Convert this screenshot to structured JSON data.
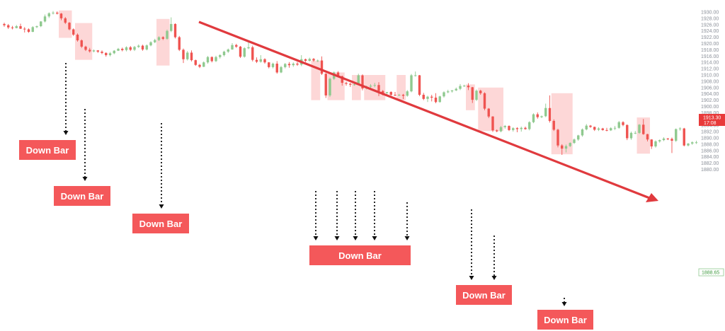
{
  "chart_data": {
    "type": "candlestick",
    "title": "",
    "xlabel": "",
    "ylabel": "",
    "ylim": [
      1880,
      1931
    ],
    "y_ticks": [
      "1930.00",
      "1928.00",
      "1926.00",
      "1924.00",
      "1922.00",
      "1920.00",
      "1918.00",
      "1916.00",
      "1914.00",
      "1912.00",
      "1910.00",
      "1908.00",
      "1906.00",
      "1904.00",
      "1902.00",
      "1900.00",
      "1898.00",
      "1896.00",
      "1894.00",
      "1892.00",
      "1890.00",
      "1888.00",
      "1886.00",
      "1884.00",
      "1882.00",
      "1880.00"
    ],
    "grid": false,
    "current_price_tag": {
      "price": "1913.30",
      "time": "17:08",
      "value": 1913.3
    },
    "last_price_tag": {
      "price": "1888.65",
      "value": 1888.65
    },
    "colors": {
      "up": "#8fc98f",
      "down": "#ef5350",
      "highlight": "#fcc9c9",
      "label_bg": "#f4585a",
      "trend_arrow": "#e03a3e",
      "connector": "#111111"
    },
    "annotations": {
      "trend_arrow": "downtrend",
      "down_bar_labels": [
        "Down Bar",
        "Down Bar",
        "Down Bar",
        "Down Bar",
        "Down Bar",
        "Down Bar"
      ]
    },
    "series": [
      {
        "points": [
          [
            1926.2,
            1926.6,
            1925.3,
            1925.8
          ],
          [
            1925.8,
            1926.2,
            1924.6,
            1925.1
          ],
          [
            1925.1,
            1925.6,
            1924.5,
            1924.9
          ],
          [
            1924.9,
            1925.9,
            1924.8,
            1925.5
          ],
          [
            1925.5,
            1926.3,
            1924.6,
            1924.7
          ],
          [
            1924.7,
            1925.2,
            1923.5,
            1924.5
          ],
          [
            1924.5,
            1924.8,
            1923.4,
            1923.7
          ],
          [
            1923.7,
            1925.5,
            1923.6,
            1925.2
          ],
          [
            1925.2,
            1925.7,
            1924.9,
            1925.5
          ],
          [
            1925.5,
            1927.1,
            1925.2,
            1927.0
          ],
          [
            1927.0,
            1929.2,
            1926.7,
            1928.6
          ],
          [
            1928.6,
            1929.9,
            1928.1,
            1929.6
          ],
          [
            1929.6,
            1930.3,
            1929.2,
            1929.8
          ],
          [
            1929.8,
            1930.2,
            1929.2,
            1929.5
          ],
          [
            1929.5,
            1929.7,
            1927.4,
            1928.0
          ],
          [
            1928.0,
            1928.4,
            1926.2,
            1926.6
          ],
          [
            1926.6,
            1926.8,
            1924.2,
            1924.5
          ],
          [
            1924.5,
            1924.8,
            1922.4,
            1922.8
          ],
          [
            1922.8,
            1923.2,
            1920.6,
            1921.0
          ],
          [
            1921.0,
            1921.3,
            1918.6,
            1919.0
          ],
          [
            1919.0,
            1919.3,
            1917.6,
            1918.0
          ],
          [
            1918.0,
            1918.6,
            1917.1,
            1917.5
          ],
          [
            1917.5,
            1918.1,
            1917.2,
            1917.8
          ],
          [
            1917.8,
            1917.9,
            1917.0,
            1917.4
          ],
          [
            1917.4,
            1917.8,
            1916.6,
            1917.0
          ],
          [
            1917.0,
            1917.2,
            1915.8,
            1916.3
          ],
          [
            1916.3,
            1917.3,
            1915.9,
            1916.9
          ],
          [
            1916.9,
            1917.9,
            1916.6,
            1917.7
          ],
          [
            1917.7,
            1918.6,
            1917.6,
            1918.3
          ],
          [
            1918.3,
            1918.7,
            1917.5,
            1917.9
          ],
          [
            1917.9,
            1919.1,
            1917.5,
            1918.8
          ],
          [
            1918.8,
            1919.2,
            1917.6,
            1918.0
          ],
          [
            1918.0,
            1919.2,
            1917.6,
            1918.9
          ],
          [
            1918.9,
            1919.7,
            1918.6,
            1919.3
          ],
          [
            1919.3,
            1919.6,
            1917.7,
            1918.1
          ],
          [
            1918.1,
            1919.7,
            1917.8,
            1919.4
          ],
          [
            1919.4,
            1920.7,
            1919.1,
            1920.4
          ],
          [
            1920.4,
            1921.5,
            1920.1,
            1921.1
          ],
          [
            1921.1,
            1922.3,
            1920.8,
            1922.0
          ],
          [
            1922.0,
            1922.3,
            1921.1,
            1921.5
          ],
          [
            1921.5,
            1924.4,
            1921.2,
            1924.0
          ],
          [
            1924.0,
            1928.3,
            1923.6,
            1926.2
          ],
          [
            1926.2,
            1926.4,
            1921.6,
            1922.0
          ],
          [
            1922.0,
            1922.4,
            1917.6,
            1918.0
          ],
          [
            1918.0,
            1918.4,
            1913.8,
            1915.0
          ],
          [
            1915.0,
            1917.6,
            1914.6,
            1917.1
          ],
          [
            1917.1,
            1917.8,
            1914.3,
            1914.7
          ],
          [
            1914.7,
            1914.9,
            1912.9,
            1913.2
          ],
          [
            1913.2,
            1913.5,
            1912.2,
            1912.6
          ],
          [
            1912.6,
            1914.3,
            1912.5,
            1914.0
          ],
          [
            1914.0,
            1916.0,
            1913.6,
            1915.7
          ],
          [
            1915.7,
            1915.9,
            1914.0,
            1914.4
          ],
          [
            1914.4,
            1916.1,
            1914.1,
            1915.7
          ],
          [
            1915.7,
            1916.6,
            1915.2,
            1916.3
          ],
          [
            1916.3,
            1917.7,
            1915.9,
            1917.4
          ],
          [
            1917.4,
            1918.4,
            1917.0,
            1918.1
          ],
          [
            1918.1,
            1920.1,
            1918.0,
            1919.5
          ],
          [
            1919.5,
            1919.9,
            1918.6,
            1919.0
          ],
          [
            1919.0,
            1919.2,
            1915.4,
            1915.8
          ],
          [
            1915.8,
            1918.8,
            1915.5,
            1918.5
          ],
          [
            1918.5,
            1920.5,
            1918.2,
            1918.8
          ],
          [
            1918.8,
            1919.3,
            1914.3,
            1914.8
          ],
          [
            1914.8,
            1915.6,
            1913.8,
            1914.2
          ],
          [
            1914.2,
            1916.3,
            1913.9,
            1915.0
          ],
          [
            1915.0,
            1915.3,
            1913.6,
            1914.0
          ],
          [
            1914.0,
            1914.1,
            1912.1,
            1912.5
          ],
          [
            1912.5,
            1913.9,
            1912.1,
            1913.6
          ],
          [
            1913.6,
            1914.4,
            1910.4,
            1910.8
          ],
          [
            1910.8,
            1912.9,
            1910.6,
            1912.5
          ],
          [
            1912.5,
            1913.8,
            1912.1,
            1913.5
          ],
          [
            1913.5,
            1914.1,
            1912.3,
            1913.1
          ],
          [
            1913.1,
            1914.0,
            1912.6,
            1913.6
          ],
          [
            1913.6,
            1914.1,
            1912.9,
            1913.3
          ],
          [
            1913.3,
            1916.3,
            1912.8,
            1915.0
          ],
          [
            1915.0,
            1915.2,
            1914.1,
            1914.5
          ],
          [
            1914.5,
            1915.5,
            1914.3,
            1915.1
          ],
          [
            1915.1,
            1915.4,
            1914.2,
            1914.6
          ],
          [
            1914.6,
            1914.9,
            1914.1,
            1914.6
          ],
          [
            1914.6,
            1915.9,
            1910.0,
            1910.4
          ],
          [
            1910.4,
            1910.6,
            1902.7,
            1903.5
          ],
          [
            1903.5,
            1909.2,
            1903.0,
            1908.8
          ],
          [
            1908.8,
            1911.1,
            1908.4,
            1910.8
          ],
          [
            1910.8,
            1911.2,
            1909.2,
            1909.6
          ],
          [
            1909.6,
            1909.8,
            1906.6,
            1907.5
          ],
          [
            1907.5,
            1907.9,
            1906.6,
            1907.2
          ],
          [
            1907.2,
            1907.5,
            1906.2,
            1906.9
          ],
          [
            1906.9,
            1907.4,
            1906.6,
            1907.0
          ],
          [
            1907.0,
            1910.4,
            1906.8,
            1909.9
          ],
          [
            1909.9,
            1910.2,
            1905.1,
            1905.7
          ],
          [
            1905.7,
            1906.6,
            1905.4,
            1906.3
          ],
          [
            1906.3,
            1907.1,
            1905.8,
            1906.6
          ],
          [
            1906.6,
            1907.5,
            1906.1,
            1906.8
          ],
          [
            1906.8,
            1907.7,
            1903.3,
            1904.9
          ],
          [
            1904.9,
            1905.2,
            1903.5,
            1904.3
          ],
          [
            1904.3,
            1904.6,
            1903.9,
            1904.6
          ],
          [
            1904.6,
            1904.8,
            1903.1,
            1903.7
          ],
          [
            1903.7,
            1904.6,
            1903.3,
            1903.6
          ],
          [
            1903.6,
            1904.0,
            1903.3,
            1903.7
          ],
          [
            1903.7,
            1904.0,
            1902.3,
            1903.4
          ],
          [
            1903.4,
            1905.2,
            1903.1,
            1904.8
          ],
          [
            1904.8,
            1910.3,
            1904.5,
            1909.9
          ],
          [
            1909.9,
            1911.1,
            1909.5,
            1909.9
          ],
          [
            1909.9,
            1910.0,
            1903.3,
            1903.7
          ],
          [
            1903.7,
            1904.3,
            1902.0,
            1902.4
          ],
          [
            1902.4,
            1903.4,
            1901.4,
            1903.1
          ],
          [
            1903.1,
            1903.7,
            1901.6,
            1902.8
          ],
          [
            1902.8,
            1904.2,
            1901.0,
            1901.4
          ],
          [
            1901.4,
            1903.4,
            1901.2,
            1903.2
          ],
          [
            1903.2,
            1904.8,
            1902.8,
            1904.5
          ],
          [
            1904.5,
            1905.3,
            1904.2,
            1904.8
          ],
          [
            1904.8,
            1905.2,
            1904.4,
            1905.1
          ],
          [
            1905.1,
            1906.0,
            1904.9,
            1905.6
          ],
          [
            1905.6,
            1907.1,
            1905.2,
            1906.5
          ],
          [
            1906.5,
            1906.9,
            1906.2,
            1906.6
          ],
          [
            1906.6,
            1907.4,
            1905.2,
            1906.1
          ],
          [
            1906.1,
            1906.2,
            1901.1,
            1902.1
          ],
          [
            1902.1,
            1905.4,
            1901.7,
            1905.0
          ],
          [
            1905.0,
            1905.3,
            1903.7,
            1904.2
          ],
          [
            1904.2,
            1904.5,
            1898.8,
            1899.3
          ],
          [
            1899.3,
            1899.5,
            1896.3,
            1896.8
          ],
          [
            1896.8,
            1896.9,
            1891.9,
            1892.4
          ],
          [
            1892.4,
            1892.7,
            1891.8,
            1892.1
          ],
          [
            1892.1,
            1893.8,
            1891.8,
            1893.4
          ],
          [
            1893.4,
            1894.1,
            1892.9,
            1893.8
          ],
          [
            1893.8,
            1894.0,
            1892.2,
            1892.5
          ],
          [
            1892.5,
            1893.4,
            1892.0,
            1893.1
          ],
          [
            1893.1,
            1893.4,
            1891.8,
            1892.8
          ],
          [
            1892.8,
            1893.6,
            1892.0,
            1893.2
          ],
          [
            1893.2,
            1893.6,
            1892.6,
            1892.8
          ],
          [
            1892.8,
            1895.3,
            1892.4,
            1895.0
          ],
          [
            1895.0,
            1897.8,
            1894.7,
            1897.5
          ],
          [
            1897.5,
            1898.1,
            1896.1,
            1896.6
          ],
          [
            1896.6,
            1897.1,
            1896.3,
            1896.9
          ],
          [
            1896.9,
            1900.9,
            1896.6,
            1899.5
          ],
          [
            1899.5,
            1903.5,
            1894.9,
            1895.4
          ],
          [
            1895.4,
            1895.9,
            1892.2,
            1892.6
          ],
          [
            1892.6,
            1892.9,
            1887.0,
            1887.6
          ],
          [
            1887.6,
            1888.0,
            1884.6,
            1886.6
          ],
          [
            1886.6,
            1887.9,
            1885.4,
            1887.4
          ],
          [
            1887.4,
            1888.6,
            1887.1,
            1888.4
          ],
          [
            1888.4,
            1889.8,
            1888.1,
            1889.5
          ],
          [
            1889.5,
            1891.0,
            1889.1,
            1890.8
          ],
          [
            1890.8,
            1893.0,
            1890.4,
            1892.7
          ],
          [
            1892.7,
            1894.4,
            1892.4,
            1893.9
          ],
          [
            1893.9,
            1894.1,
            1893.2,
            1893.5
          ],
          [
            1893.5,
            1893.6,
            1892.2,
            1892.6
          ],
          [
            1892.6,
            1893.4,
            1892.2,
            1893.0
          ],
          [
            1893.0,
            1893.2,
            1892.3,
            1892.5
          ],
          [
            1892.5,
            1893.2,
            1892.1,
            1892.4
          ],
          [
            1892.4,
            1893.4,
            1892.2,
            1893.1
          ],
          [
            1893.1,
            1893.8,
            1892.5,
            1893.2
          ],
          [
            1893.2,
            1895.4,
            1892.9,
            1895.0
          ],
          [
            1895.0,
            1895.3,
            1893.7,
            1894.1
          ],
          [
            1894.1,
            1894.3,
            1889.3,
            1889.9
          ],
          [
            1889.9,
            1892.0,
            1889.4,
            1891.6
          ],
          [
            1891.6,
            1892.2,
            1891.2,
            1891.6
          ],
          [
            1891.6,
            1894.4,
            1891.3,
            1894.2
          ],
          [
            1894.2,
            1896.0,
            1891.0,
            1891.2
          ],
          [
            1891.2,
            1891.3,
            1888.9,
            1889.5
          ],
          [
            1889.5,
            1889.6,
            1886.5,
            1887.3
          ],
          [
            1887.3,
            1889.2,
            1886.9,
            1888.9
          ],
          [
            1888.9,
            1889.5,
            1888.5,
            1889.3
          ],
          [
            1889.3,
            1890.2,
            1889.0,
            1889.8
          ],
          [
            1889.8,
            1890.0,
            1889.3,
            1889.7
          ],
          [
            1889.7,
            1890.1,
            1885.2,
            1889.1
          ],
          [
            1889.1,
            1893.0,
            1888.7,
            1892.8
          ],
          [
            1892.8,
            1893.4,
            1892.3,
            1893.0
          ],
          [
            1893.0,
            1893.2,
            1887.3,
            1887.6
          ],
          [
            1887.6,
            1888.4,
            1887.3,
            1888.2
          ],
          [
            1888.2,
            1888.9,
            1887.8,
            1888.6
          ],
          [
            1888.6,
            1889.1,
            1888.1,
            1888.6
          ]
        ]
      }
    ]
  }
}
